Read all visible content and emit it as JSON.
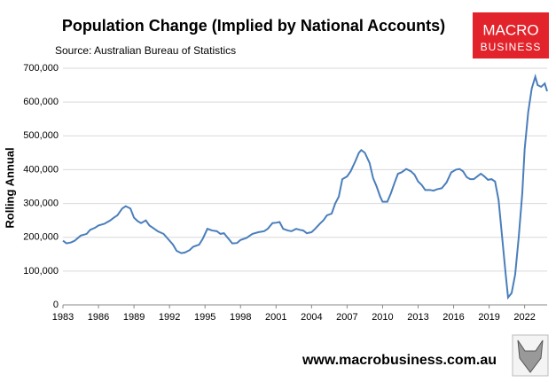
{
  "chart_data": {
    "type": "line",
    "title": "Population Change (Implied by National Accounts)",
    "subtitle": "Source: Australian Bureau of Statistics",
    "y_label": "Rolling Annual",
    "logo": {
      "line1": "MACRO",
      "line2": "BUSINESS"
    },
    "footer": "www.macrobusiness.com.au",
    "xlim": [
      1983,
      2023.9
    ],
    "xticks": [
      1983,
      1986,
      1989,
      1992,
      1995,
      1998,
      2001,
      2004,
      2007,
      2010,
      2013,
      2016,
      2019,
      2022
    ],
    "ylim": [
      0,
      700000
    ],
    "yticks": [
      0,
      {
        "value": 100000,
        "label": "100,000"
      },
      {
        "value": 200000,
        "label": "200,000"
      },
      {
        "value": 300000,
        "label": "300,000"
      },
      {
        "value": 400000,
        "label": "400,000"
      },
      {
        "value": 500000,
        "label": "500,000"
      },
      {
        "value": 600000,
        "label": "600,000"
      },
      {
        "value": 700000,
        "label": "700,000"
      }
    ],
    "grid": true,
    "series": [
      {
        "color": "#4a7ebb",
        "x": [
          1983.0,
          1983.3,
          1983.7,
          1984.0,
          1984.5,
          1985.0,
          1985.3,
          1985.7,
          1986.0,
          1986.5,
          1987.0,
          1987.3,
          1987.6,
          1988.0,
          1988.3,
          1988.7,
          1989.0,
          1989.3,
          1989.6,
          1990.0,
          1990.3,
          1990.6,
          1991.0,
          1991.5,
          1992.0,
          1992.3,
          1992.6,
          1993.0,
          1993.3,
          1993.7,
          1994.0,
          1994.5,
          1994.8,
          1995.0,
          1995.2,
          1995.6,
          1996.0,
          1996.3,
          1996.6,
          1997.0,
          1997.3,
          1997.7,
          1998.0,
          1998.5,
          1999.0,
          1999.5,
          2000.0,
          2000.3,
          2000.7,
          2001.0,
          2001.3,
          2001.6,
          2002.0,
          2002.3,
          2002.7,
          2003.0,
          2003.3,
          2003.6,
          2004.0,
          2004.3,
          2004.7,
          2005.0,
          2005.3,
          2005.7,
          2006.0,
          2006.3,
          2006.6,
          2007.0,
          2007.3,
          2007.7,
          2008.0,
          2008.2,
          2008.5,
          2008.9,
          2009.2,
          2009.5,
          2009.8,
          2010.0,
          2010.4,
          2010.7,
          2011.0,
          2011.3,
          2011.6,
          2012.0,
          2012.4,
          2012.7,
          2013.0,
          2013.3,
          2013.6,
          2014.0,
          2014.3,
          2014.6,
          2015.0,
          2015.4,
          2015.8,
          2016.2,
          2016.5,
          2016.8,
          2017.1,
          2017.4,
          2017.7,
          2018.0,
          2018.3,
          2018.6,
          2018.9,
          2019.2,
          2019.5,
          2019.8,
          2020.1,
          2020.4,
          2020.6,
          2020.9,
          2021.2,
          2021.5,
          2021.8,
          2022.0,
          2022.3,
          2022.6,
          2022.9,
          2023.1,
          2023.4,
          2023.7,
          2023.9
        ],
        "values": [
          190000,
          182000,
          185000,
          190000,
          205000,
          210000,
          222000,
          228000,
          235000,
          240000,
          250000,
          258000,
          265000,
          285000,
          292000,
          285000,
          258000,
          248000,
          242000,
          250000,
          235000,
          228000,
          218000,
          210000,
          190000,
          178000,
          160000,
          153000,
          155000,
          162000,
          172000,
          178000,
          195000,
          210000,
          225000,
          220000,
          218000,
          210000,
          212000,
          195000,
          182000,
          183000,
          192000,
          198000,
          210000,
          215000,
          218000,
          225000,
          242000,
          243000,
          245000,
          225000,
          220000,
          218000,
          225000,
          222000,
          220000,
          212000,
          215000,
          225000,
          240000,
          250000,
          265000,
          270000,
          300000,
          320000,
          372000,
          380000,
          395000,
          425000,
          450000,
          458000,
          450000,
          420000,
          375000,
          350000,
          320000,
          305000,
          305000,
          330000,
          360000,
          388000,
          392000,
          402000,
          395000,
          385000,
          365000,
          355000,
          340000,
          340000,
          338000,
          342000,
          345000,
          362000,
          392000,
          400000,
          402000,
          395000,
          378000,
          372000,
          372000,
          380000,
          388000,
          380000,
          370000,
          372000,
          365000,
          310000,
          200000,
          90000,
          22000,
          35000,
          90000,
          200000,
          330000,
          460000,
          570000,
          640000,
          675000,
          650000,
          645000,
          655000,
          632000
        ]
      }
    ]
  }
}
